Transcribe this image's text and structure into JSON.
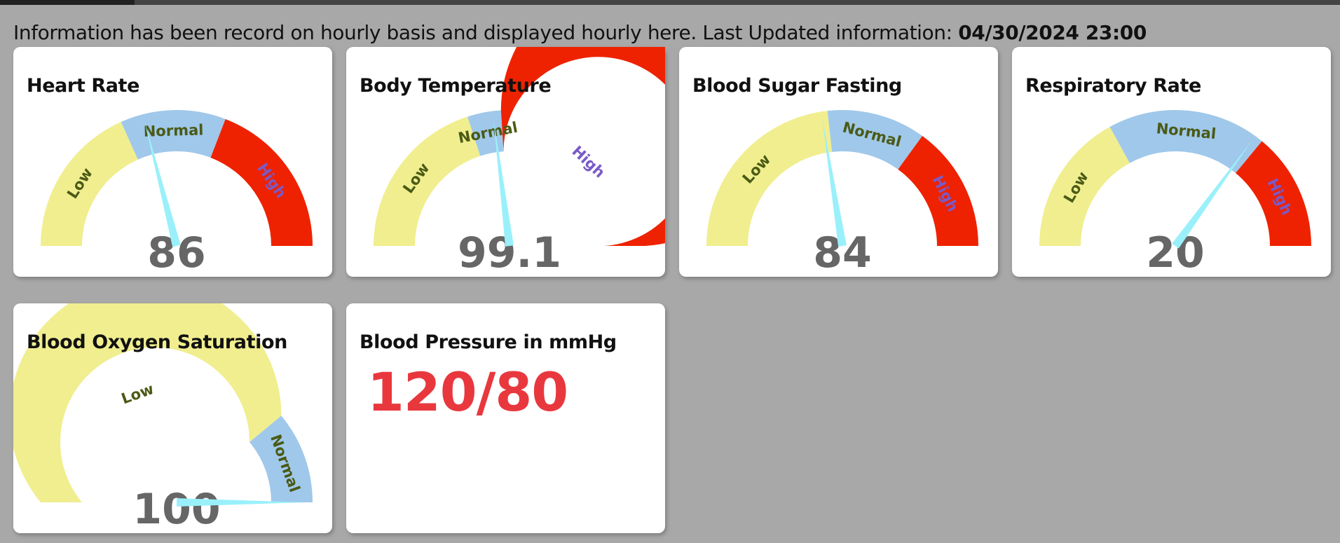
{
  "header": {
    "info_text": "Information has been record on hourly basis and displayed hourly here. Last Updated information:",
    "last_updated": "04/30/2024 23:00"
  },
  "colors": {
    "low": "#f0ee8f",
    "normal": "#a0c8ea",
    "high": "#ee2200",
    "needle": "#9af0fa",
    "value_text": "#666666",
    "label_text": "#4a5a16",
    "high_label_text": "#7a5ac8",
    "bp_text": "#e8383e"
  },
  "gauges": [
    {
      "title": "Heart Rate",
      "value": "86",
      "needle_fraction": 0.42,
      "segments": [
        {
          "label": "Low",
          "zone": "low",
          "from": 0,
          "to": 0.366
        },
        {
          "label": "Normal",
          "zone": "normal",
          "from": 0.366,
          "to": 0.617
        },
        {
          "label": "High",
          "zone": "high",
          "from": 0.617,
          "to": 1
        }
      ]
    },
    {
      "title": "Body Temperature",
      "value": "99.1",
      "needle_fraction": 0.46,
      "segments": [
        {
          "label": "Low",
          "zone": "low",
          "from": 0,
          "to": 0.4
        },
        {
          "label": "Normal",
          "zone": "normal",
          "from": 0.4,
          "to": 0.48
        },
        {
          "label": "High",
          "zone": "high",
          "from": 0.48,
          "to": 1
        }
      ]
    },
    {
      "title": "Blood Sugar Fasting",
      "value": "84",
      "needle_fraction": 0.45,
      "segments": [
        {
          "label": "Low",
          "zone": "low",
          "from": 0,
          "to": 0.465
        },
        {
          "label": "Normal",
          "zone": "normal",
          "from": 0.465,
          "to": 0.7
        },
        {
          "label": "High",
          "zone": "high",
          "from": 0.7,
          "to": 1
        }
      ]
    },
    {
      "title": "Respiratory Rate",
      "value": "20",
      "needle_fraction": 0.7,
      "segments": [
        {
          "label": "Low",
          "zone": "low",
          "from": 0,
          "to": 0.34
        },
        {
          "label": "Normal",
          "zone": "normal",
          "from": 0.34,
          "to": 0.72
        },
        {
          "label": "High",
          "zone": "high",
          "from": 0.72,
          "to": 1
        }
      ]
    },
    {
      "title": "Blood Oxygen Saturation",
      "value": "100",
      "needle_fraction": 1.0,
      "segments": [
        {
          "label": "Low",
          "zone": "low",
          "from": 0,
          "to": 0.78
        },
        {
          "label": "Normal",
          "zone": "normal",
          "from": 0.78,
          "to": 1
        }
      ]
    }
  ],
  "blood_pressure": {
    "title": "Blood Pressure in mmHg",
    "value": "120/80"
  }
}
